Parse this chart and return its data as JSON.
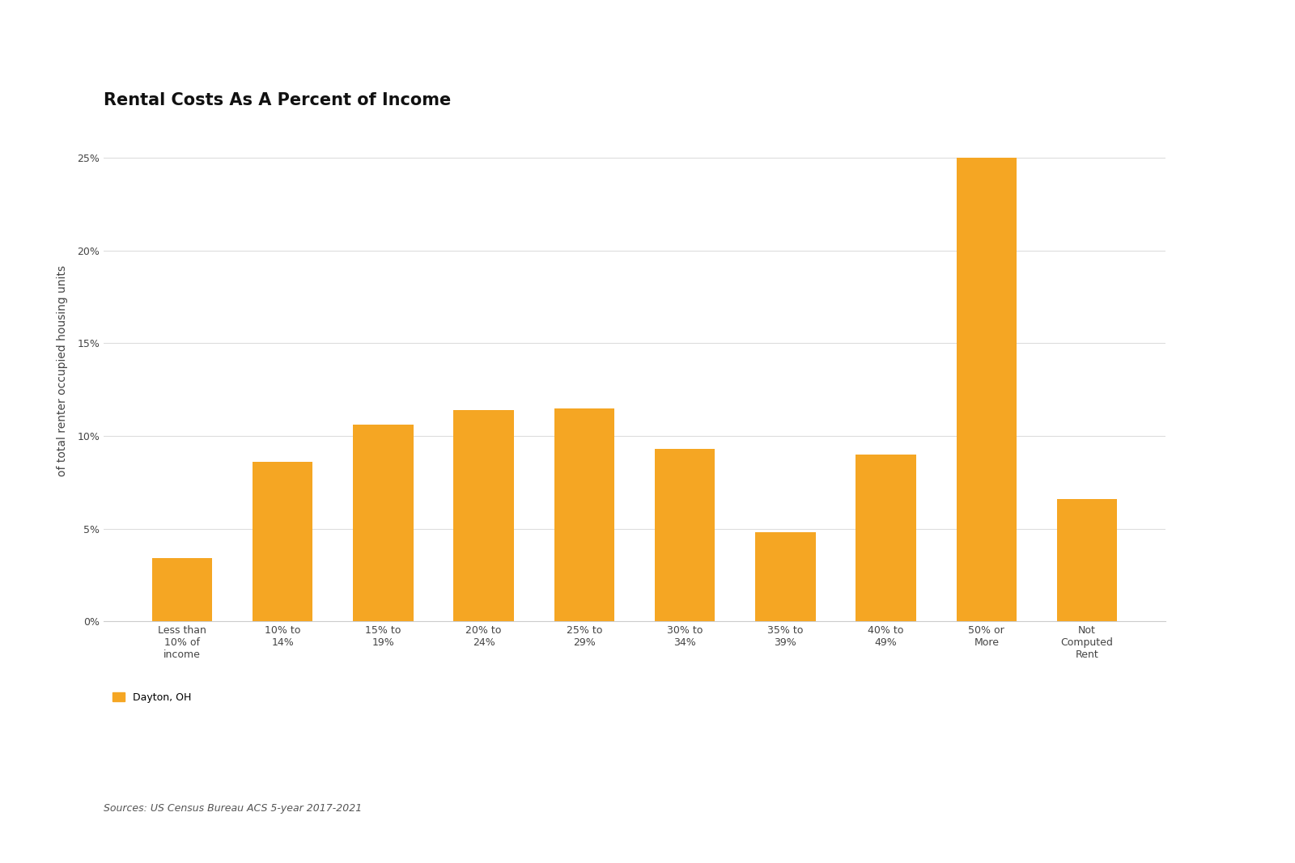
{
  "title": "Rental Costs As A Percent of Income",
  "categories": [
    "Less than\n10% of\nincome",
    "10% to\n14%",
    "15% to\n19%",
    "20% to\n24%",
    "25% to\n29%",
    "30% to\n34%",
    "35% to\n39%",
    "40% to\n49%",
    "50% or\nMore",
    "Not\nComputed\nRent"
  ],
  "values": [
    3.4,
    8.6,
    10.6,
    11.4,
    11.5,
    9.3,
    4.8,
    9.0,
    25.0,
    6.6
  ],
  "bar_color": "#F5A623",
  "ylabel": "of total renter occupied housing units",
  "ylim": [
    0,
    27
  ],
  "yticks": [
    0,
    5,
    10,
    15,
    20,
    25
  ],
  "ytick_labels": [
    "0%",
    "5%",
    "10%",
    "15%",
    "20%",
    "25%"
  ],
  "legend_label": "Dayton, OH",
  "source_text": "Sources: US Census Bureau ACS 5-year 2017-2021",
  "background_color": "#ffffff",
  "title_fontsize": 15,
  "ylabel_fontsize": 10,
  "tick_fontsize": 9,
  "legend_fontsize": 9,
  "source_fontsize": 9
}
